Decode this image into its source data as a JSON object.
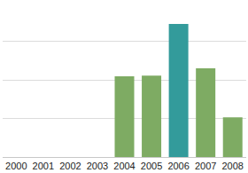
{
  "chart_data": {
    "type": "bar",
    "categories": [
      "2000",
      "2001",
      "2002",
      "2003",
      "2004",
      "2005",
      "2006",
      "2007",
      "2008"
    ],
    "values": [
      null,
      null,
      null,
      null,
      2.09,
      2.11,
      3.45,
      2.3,
      1.03
    ],
    "colors": [
      "#7eab63",
      "#7eab63",
      "#7eab63",
      "#7eab63",
      "#7eab63",
      "#7eab63",
      "#339b9b",
      "#7eab63",
      "#7eab63"
    ],
    "ylim": [
      0,
      4
    ],
    "yticks": [
      0,
      1,
      2,
      3,
      4
    ],
    "grid": true,
    "tick_labels": "x"
  }
}
